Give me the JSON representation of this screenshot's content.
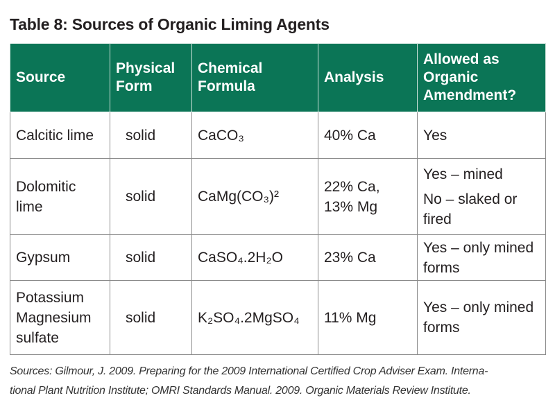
{
  "title": "Table 8: Sources of Organic Liming Agents",
  "table": {
    "header": [
      "Source",
      "Physical Form",
      "Chemical Formula",
      "Analysis",
      "Allowed as Organic Amendment?"
    ],
    "rows": [
      [
        "Calcitic lime",
        "solid",
        "CaCO₃",
        "40% Ca",
        "Yes"
      ],
      [
        "Dolomitic lime",
        "solid",
        "CaMg(CO₃)²",
        "22% Ca, 13% Mg",
        [
          "Yes – mined",
          "No – slaked or fired"
        ]
      ],
      [
        "Gypsum",
        "solid",
        "CaSO₄.2H₂O",
        "23% Ca",
        "Yes – only mined forms"
      ],
      [
        "Potassium Magnesium sulfate",
        "solid",
        "K₂SO₄.2MgSO₄",
        "11% Mg",
        "Yes – only mined forms"
      ]
    ]
  },
  "footnote": [
    "Sources: Gilmour, J. 2009. Preparing for the 2009 International Certified Crop Adviser Exam. Interna-",
    "tional Plant Nutrition Institute; OMRI Standards Manual. 2009. Organic Materials Review Institute."
  ]
}
